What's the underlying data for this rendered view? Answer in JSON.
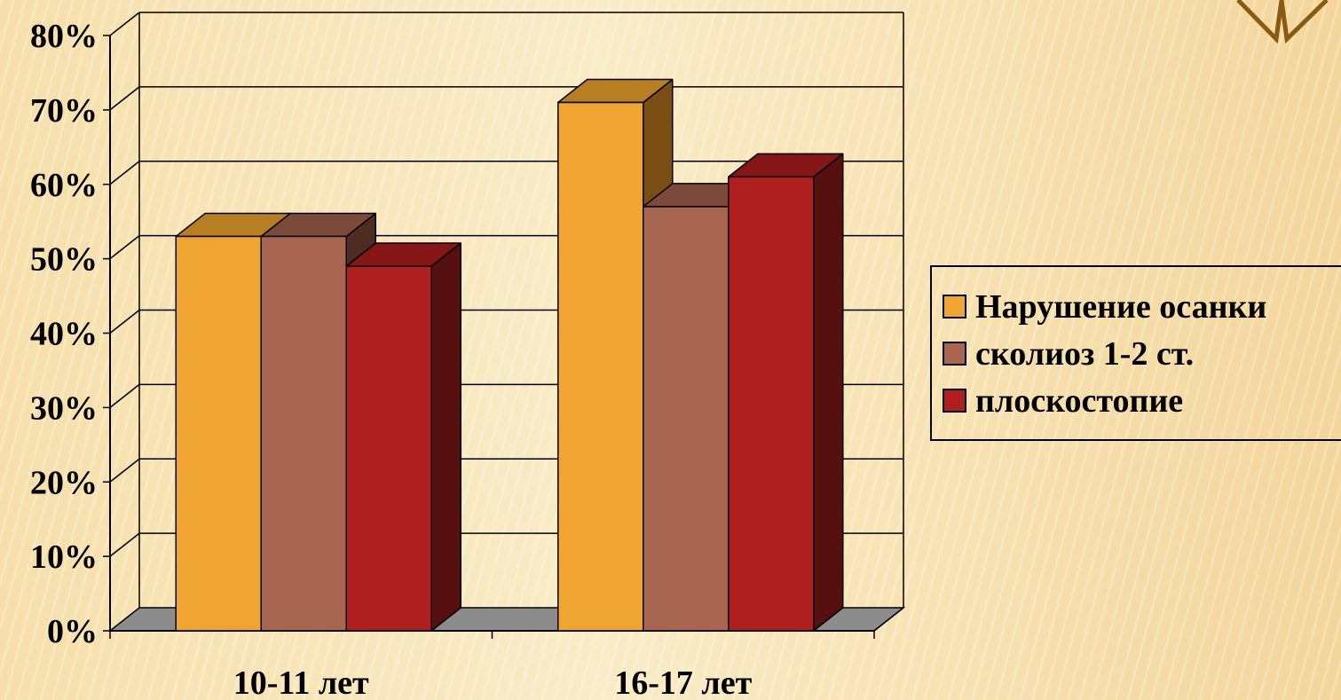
{
  "chart_data": {
    "type": "bar",
    "style": "3d-clustered-column",
    "categories": [
      "10-11 лет",
      "16-17 лет"
    ],
    "series": [
      {
        "name": "Нарушение осанки",
        "values": [
          53,
          71
        ],
        "color": "#f0a431",
        "top_color": "#b87e22",
        "side_color": "#7a4d12"
      },
      {
        "name": "сколиоз 1-2 ст.",
        "values": [
          53,
          57
        ],
        "color": "#a86651",
        "top_color": "#7c4a3b",
        "side_color": "#4e2c22"
      },
      {
        "name": "плоскостопие",
        "values": [
          49,
          61
        ],
        "color": "#b01f1f",
        "top_color": "#861616",
        "side_color": "#571010"
      }
    ],
    "yticks": [
      "0%",
      "10%",
      "20%",
      "30%",
      "40%",
      "50%",
      "60%",
      "70%",
      "80%"
    ],
    "ylim": [
      0,
      80
    ],
    "grid": true,
    "legend_position": "right",
    "title": "",
    "xlabel": "",
    "ylabel": ""
  },
  "colors": {
    "floor": "#8c8c8c",
    "grid": "#000000",
    "ornament": "#8a5a10"
  }
}
